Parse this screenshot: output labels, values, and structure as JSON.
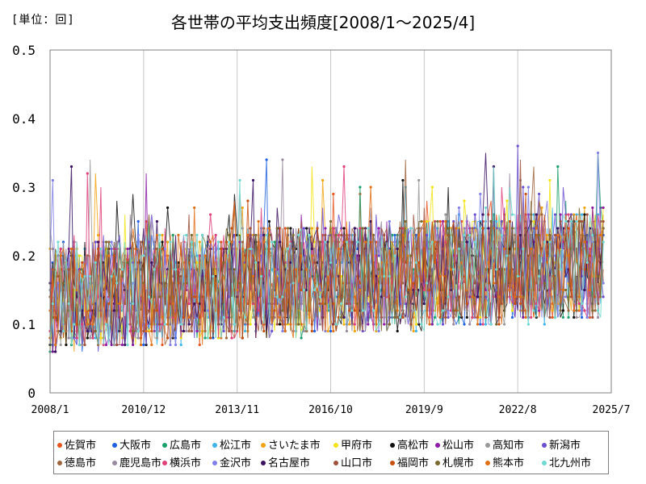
{
  "unit_label": "[単位：回]",
  "chart_data": {
    "type": "line",
    "title": "各世帯の平均支出頻度[2008/1～2025/4]",
    "xlabel": "",
    "ylabel": "",
    "ylim": [
      0,
      0.5
    ],
    "yticks": [
      "0",
      "0.1",
      "0.2",
      "0.3",
      "0.4",
      "0.5"
    ],
    "x_range": [
      "2008/1",
      "2025/7"
    ],
    "xticks": [
      "2008/1",
      "2010/12",
      "2013/11",
      "2016/10",
      "2019/9",
      "2022/8",
      "2025/7"
    ],
    "grid": "vertical",
    "legend_position": "bottom",
    "series": [
      {
        "name": "佐賀市",
        "color": "#e8541e"
      },
      {
        "name": "大阪市",
        "color": "#1f5fe0"
      },
      {
        "name": "広島市",
        "color": "#1aa06b"
      },
      {
        "name": "松江市",
        "color": "#3fb6e8"
      },
      {
        "name": "さいたま市",
        "color": "#f2a413"
      },
      {
        "name": "甲府市",
        "color": "#f2e413"
      },
      {
        "name": "高松市",
        "color": "#111111"
      },
      {
        "name": "松山市",
        "color": "#8e1ea8"
      },
      {
        "name": "高知市",
        "color": "#9a9a9a"
      },
      {
        "name": "新潟市",
        "color": "#6a4fd0"
      },
      {
        "name": "徳島市",
        "color": "#a0643c"
      },
      {
        "name": "鹿児島市",
        "color": "#9a8aa0"
      },
      {
        "name": "横浜市",
        "color": "#e0407a"
      },
      {
        "name": "金沢市",
        "color": "#8080e8"
      },
      {
        "name": "名古屋市",
        "color": "#3a1060"
      },
      {
        "name": "山口市",
        "color": "#a0503c"
      },
      {
        "name": "福岡市",
        "color": "#c85010"
      },
      {
        "name": "札幌市",
        "color": "#7a6a30"
      },
      {
        "name": "熊本市",
        "color": "#e07018"
      },
      {
        "name": "北九州市",
        "color": "#70d8d0"
      }
    ]
  }
}
